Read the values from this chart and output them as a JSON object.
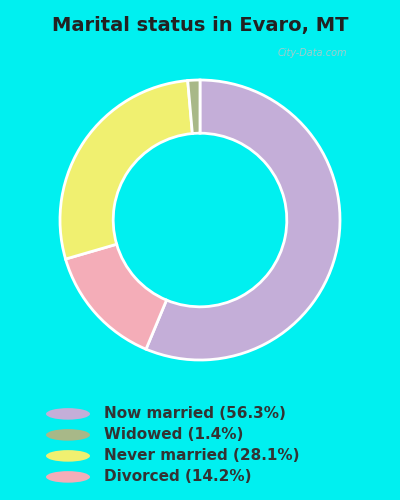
{
  "title": "Marital status in Evaro, MT",
  "categories": [
    "Now married (56.3%)",
    "Widowed (1.4%)",
    "Never married (28.1%)",
    "Divorced (14.2%)"
  ],
  "plot_values": [
    56.3,
    14.2,
    28.1,
    1.4
  ],
  "plot_colors": [
    "#c4aed8",
    "#f4adb8",
    "#f0f070",
    "#a8b888"
  ],
  "legend_colors": [
    "#c4aed8",
    "#a8b888",
    "#f0f070",
    "#f4adb8"
  ],
  "bg_cyan": "#00f0f0",
  "watermark": "City-Data.com",
  "title_fontsize": 14,
  "legend_fontsize": 11
}
